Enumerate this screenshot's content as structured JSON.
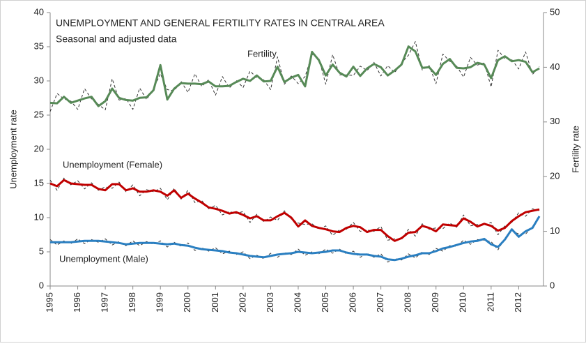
{
  "chart_data": {
    "type": "line",
    "title": "UNEMPLOYMENT AND GENERAL FERTILITY RATES IN CENTRAL AREA",
    "subtitle": "Seasonal and adjusted data",
    "y_label": "Unemployment  rate",
    "y2_label": "Fertility rate",
    "xlim": [
      1995,
      2012.9
    ],
    "xticks": [
      1995,
      1996,
      1997,
      1998,
      1999,
      2000,
      2001,
      2002,
      2003,
      2004,
      2005,
      2006,
      2007,
      2008,
      2009,
      2010,
      2011,
      2012
    ],
    "ylim": [
      0,
      40
    ],
    "yticks": [
      0,
      5,
      10,
      15,
      20,
      25,
      30,
      35,
      40
    ],
    "y2lim": [
      0,
      50
    ],
    "y2ticks": [
      0,
      10,
      20,
      30,
      40,
      50
    ],
    "grid": false,
    "x": [
      1995,
      1995.25,
      1995.5,
      1995.75,
      1996,
      1996.25,
      1996.5,
      1996.75,
      1997,
      1997.25,
      1997.5,
      1997.75,
      1998,
      1998.25,
      1998.5,
      1998.75,
      1999,
      1999.25,
      1999.5,
      1999.75,
      2000,
      2000.25,
      2000.5,
      2000.75,
      2001,
      2001.25,
      2001.5,
      2001.75,
      2002,
      2002.25,
      2002.5,
      2002.75,
      2003,
      2003.25,
      2003.5,
      2003.75,
      2004,
      2004.25,
      2004.5,
      2004.75,
      2005,
      2005.25,
      2005.5,
      2005.75,
      2006,
      2006.25,
      2006.5,
      2006.75,
      2007,
      2007.25,
      2007.5,
      2007.75,
      2008,
      2008.25,
      2008.5,
      2008.75,
      2009,
      2009.25,
      2009.5,
      2009.75,
      2010,
      2010.25,
      2010.5,
      2010.75,
      2011,
      2011.25,
      2011.5,
      2011.75,
      2012,
      2012.25,
      2012.5,
      2012.75
    ],
    "series": [
      {
        "color": "#333333",
        "dashed": true,
        "axis": "y2",
        "values": [
          31.9,
          35.2,
          34.2,
          33.8,
          32.3,
          36.1,
          34.2,
          33.2,
          32.2,
          37.9,
          34.0,
          34.3,
          32.3,
          36.2,
          34.1,
          36.1,
          38.8,
          35.9,
          35.7,
          37.4,
          35.4,
          38.8,
          36.5,
          37.7,
          34.9,
          38.3,
          36.2,
          37.6,
          36.3,
          39.3,
          38.1,
          37.7,
          35.9,
          41.9,
          36.9,
          38.4,
          37.0,
          38.3,
          42.4,
          41.6,
          36.9,
          42.3,
          38.6,
          38.6,
          38.5,
          40.2,
          39.4,
          40.9,
          38.4,
          40.3,
          39.0,
          40.8,
          42.2,
          44.7,
          39.5,
          40.3,
          37.0,
          42.4,
          41.1,
          40.2,
          38.2,
          41.8,
          40.4,
          40.8,
          36.4,
          43.1,
          41.6,
          41.4,
          39.7,
          42.8,
          38.7,
          40.1
        ]
      },
      {
        "name": "Fertility",
        "color": "#578a57",
        "dashed": false,
        "axis": "y2",
        "values": [
          33.5,
          33.4,
          34.6,
          33.5,
          33.9,
          34.3,
          34.6,
          32.9,
          33.8,
          36.1,
          34.4,
          34.0,
          33.9,
          34.4,
          34.5,
          35.8,
          40.4,
          34.1,
          36.1,
          37.1,
          37.0,
          37.0,
          36.9,
          37.4,
          36.5,
          36.5,
          36.6,
          37.3,
          37.9,
          37.5,
          38.5,
          37.4,
          37.5,
          40.1,
          37.3,
          38.1,
          38.6,
          36.5,
          42.8,
          41.3,
          38.5,
          40.5,
          39.0,
          38.3,
          40.1,
          38.4,
          39.8,
          40.6,
          40.0,
          38.5,
          39.4,
          40.5,
          43.8,
          42.9,
          39.9,
          40.0,
          38.6,
          40.6,
          41.5,
          39.9,
          39.8,
          40.0,
          40.8,
          40.5,
          38.0,
          41.3,
          42.0,
          41.1,
          41.3,
          41.0,
          39.1,
          39.8
        ]
      },
      {
        "color": "#333333",
        "dashed": true,
        "values": [
          15.5,
          14.0,
          15.8,
          14.8,
          15.4,
          14.2,
          15.1,
          14.0,
          14.5,
          14.3,
          15.2,
          13.8,
          14.8,
          13.2,
          14.1,
          13.8,
          14.3,
          12.6,
          14.3,
          12.7,
          14.0,
          12.2,
          12.5,
          11.3,
          11.8,
          10.4,
          10.9,
          10.6,
          10.9,
          9.3,
          10.5,
          9.4,
          10.1,
          9.6,
          11.0,
          9.8,
          9.2,
          9.0,
          9.1,
          8.3,
          8.8,
          7.4,
          8.2,
          8.3,
          9.3,
          8.0,
          8.2,
          8.0,
          8.7,
          6.7,
          6.9,
          6.8,
          8.3,
          7.3,
          9.1,
          8.3,
          8.5,
          8.4,
          9.2,
          8.6,
          10.4,
          8.8,
          9.0,
          8.9,
          9.3,
          7.5,
          8.8,
          9.3,
          10.7,
          10.2,
          11.3,
          11.0
        ]
      },
      {
        "name": "Unemployment (Female)",
        "color": "#c00000",
        "dashed": false,
        "values": [
          15.0,
          14.6,
          15.5,
          15.0,
          14.9,
          14.8,
          14.8,
          14.2,
          14.0,
          14.9,
          14.9,
          14.0,
          14.3,
          13.8,
          13.8,
          14.0,
          13.8,
          13.2,
          14.0,
          12.9,
          13.5,
          12.8,
          12.2,
          11.5,
          11.3,
          11.0,
          10.6,
          10.8,
          10.4,
          9.9,
          10.2,
          9.6,
          9.6,
          10.2,
          10.7,
          10.0,
          8.7,
          9.6,
          8.8,
          8.5,
          8.3,
          8.0,
          7.9,
          8.5,
          8.8,
          8.6,
          7.9,
          8.2,
          8.2,
          7.3,
          6.6,
          7.0,
          7.8,
          7.9,
          8.8,
          8.5,
          8.0,
          9.0,
          8.9,
          8.8,
          9.9,
          9.4,
          8.7,
          9.1,
          8.8,
          8.1,
          8.5,
          9.5,
          10.2,
          10.8,
          11.0,
          11.2
        ]
      },
      {
        "color": "#333333",
        "dashed": true,
        "values": [
          6.8,
          6.0,
          6.6,
          6.2,
          6.9,
          6.2,
          6.8,
          6.4,
          6.9,
          6.0,
          6.5,
          5.9,
          6.6,
          5.9,
          6.5,
          6.1,
          6.6,
          5.7,
          6.4,
          5.8,
          6.3,
          5.2,
          5.6,
          5.1,
          5.6,
          4.7,
          5.1,
          4.6,
          5.0,
          4.0,
          4.5,
          4.0,
          4.8,
          4.2,
          4.9,
          4.6,
          5.4,
          4.5,
          5.0,
          4.7,
          5.4,
          4.8,
          5.4,
          4.7,
          5.1,
          4.2,
          4.8,
          4.2,
          4.7,
          3.5,
          4.0,
          3.8,
          4.7,
          4.1,
          5.0,
          4.6,
          5.5,
          5.1,
          5.9,
          5.8,
          6.7,
          6.1,
          6.8,
          6.7,
          6.5,
          5.3,
          7.0,
          8.1,
          7.6,
          7.6,
          8.7,
          10.0
        ]
      },
      {
        "name": "Unemployment (Male)",
        "color": "#2a7fc1",
        "dashed": false,
        "values": [
          6.4,
          6.4,
          6.4,
          6.4,
          6.5,
          6.6,
          6.6,
          6.6,
          6.5,
          6.4,
          6.3,
          6.1,
          6.2,
          6.3,
          6.3,
          6.3,
          6.2,
          6.1,
          6.2,
          6.0,
          5.9,
          5.6,
          5.4,
          5.3,
          5.2,
          5.1,
          4.9,
          4.8,
          4.6,
          4.4,
          4.3,
          4.2,
          4.4,
          4.6,
          4.7,
          4.8,
          5.0,
          4.9,
          4.8,
          4.9,
          5.0,
          5.2,
          5.2,
          4.9,
          4.7,
          4.6,
          4.6,
          4.4,
          4.3,
          3.9,
          3.8,
          4.0,
          4.3,
          4.5,
          4.8,
          4.8,
          5.1,
          5.5,
          5.7,
          6.0,
          6.3,
          6.5,
          6.6,
          6.9,
          6.1,
          5.7,
          6.8,
          8.3,
          7.2,
          8.0,
          8.5,
          10.2
        ]
      }
    ]
  }
}
